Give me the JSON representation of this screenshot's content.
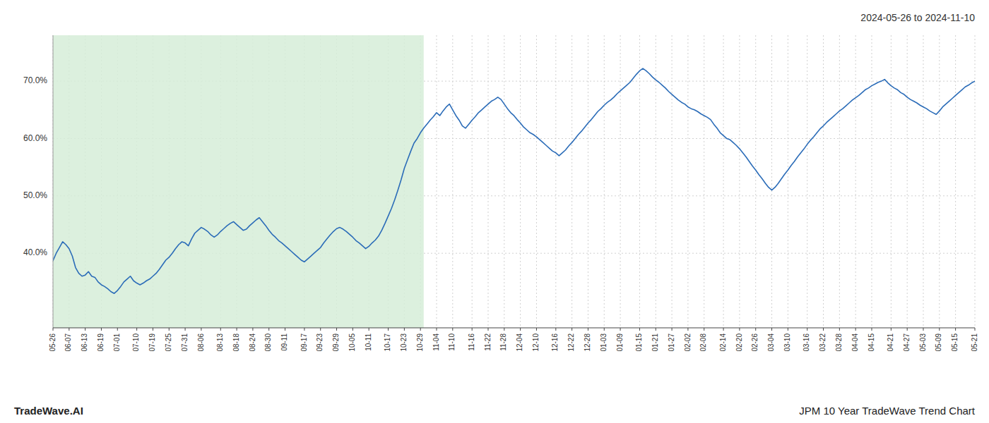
{
  "chart_data": {
    "type": "line",
    "title": "2024-05-26 to 2024-11-10",
    "annotations": [
      "TradeWave.AI",
      "JPM 10 Year TradeWave Trend Chart"
    ],
    "color": "#2B6CB8",
    "grid": true,
    "shade": {
      "x": [
        0,
        115
      ],
      "color": "#d6edd8"
    },
    "ylim": [
      0.27,
      0.78
    ],
    "yticks": [
      {
        "value": 0.4,
        "label": "40.0%"
      },
      {
        "value": 0.5,
        "label": "50.0%"
      },
      {
        "value": 0.6,
        "label": "60.0%"
      },
      {
        "value": 0.7,
        "label": "70.0%"
      }
    ],
    "categories": [
      "05-26",
      null,
      null,
      null,
      null,
      "06-07",
      null,
      null,
      null,
      null,
      "06-13",
      null,
      null,
      null,
      null,
      "06-19",
      null,
      null,
      null,
      null,
      "07-01",
      null,
      null,
      null,
      null,
      null,
      "07-10",
      null,
      null,
      null,
      null,
      "07-19",
      null,
      null,
      null,
      null,
      "07-25",
      null,
      null,
      null,
      null,
      "07-31",
      null,
      null,
      null,
      null,
      "08-06",
      null,
      null,
      null,
      null,
      null,
      "08-13",
      null,
      null,
      null,
      null,
      "08-18",
      null,
      null,
      null,
      null,
      "08-24",
      null,
      null,
      null,
      null,
      "08-30",
      null,
      null,
      null,
      null,
      "09-11",
      null,
      null,
      null,
      null,
      null,
      "09-17",
      null,
      null,
      null,
      null,
      "09-23",
      null,
      null,
      null,
      null,
      "09-29",
      null,
      null,
      null,
      null,
      "10-05",
      null,
      null,
      null,
      null,
      "10-11",
      null,
      null,
      null,
      null,
      null,
      "10-17",
      null,
      null,
      null,
      null,
      "10-23",
      null,
      null,
      null,
      null,
      "10-29",
      null,
      null,
      null,
      null,
      "11-04",
      null,
      null,
      null,
      null,
      "11-10",
      null,
      null,
      null,
      null,
      null,
      "11-16",
      null,
      null,
      null,
      null,
      "11-22",
      null,
      null,
      null,
      null,
      "11-28",
      null,
      null,
      null,
      null,
      "12-04",
      null,
      null,
      null,
      null,
      "12-10",
      null,
      null,
      null,
      null,
      null,
      "12-16",
      null,
      null,
      null,
      null,
      "12-22",
      null,
      null,
      null,
      null,
      "12-28",
      null,
      null,
      null,
      null,
      "01-03",
      null,
      null,
      null,
      null,
      "01-09",
      null,
      null,
      null,
      null,
      null,
      "01-15",
      null,
      null,
      null,
      null,
      "01-21",
      null,
      null,
      null,
      null,
      "01-27",
      null,
      null,
      null,
      null,
      "02-02",
      null,
      null,
      null,
      null,
      "02-08",
      null,
      null,
      null,
      null,
      null,
      "02-14",
      null,
      null,
      null,
      null,
      "02-20",
      null,
      null,
      null,
      null,
      "02-26",
      null,
      null,
      null,
      null,
      "03-04",
      null,
      null,
      null,
      null,
      "03-10",
      null,
      null,
      null,
      null,
      null,
      "03-16",
      null,
      null,
      null,
      null,
      "03-22",
      null,
      null,
      null,
      null,
      "03-28",
      null,
      null,
      null,
      null,
      "04-04",
      null,
      null,
      null,
      null,
      "04-15",
      null,
      null,
      null,
      null,
      null,
      "04-21",
      null,
      null,
      null,
      null,
      "04-27",
      null,
      null,
      null,
      null,
      "05-03",
      null,
      null,
      null,
      null,
      "05-09",
      null,
      null,
      null,
      null,
      "05-15",
      null,
      null,
      null,
      null,
      null,
      "05-21"
    ],
    "values": [
      0.387,
      0.4,
      0.41,
      0.42,
      0.415,
      0.408,
      0.395,
      0.375,
      0.365,
      0.36,
      0.362,
      0.368,
      0.36,
      0.358,
      0.35,
      0.345,
      0.342,
      0.338,
      0.333,
      0.33,
      0.335,
      0.342,
      0.35,
      0.355,
      0.36,
      0.352,
      0.348,
      0.345,
      0.348,
      0.352,
      0.355,
      0.36,
      0.365,
      0.372,
      0.38,
      0.388,
      0.393,
      0.4,
      0.408,
      0.415,
      0.42,
      0.418,
      0.413,
      0.425,
      0.435,
      0.44,
      0.445,
      0.442,
      0.438,
      0.432,
      0.428,
      0.432,
      0.438,
      0.443,
      0.448,
      0.452,
      0.455,
      0.45,
      0.445,
      0.44,
      0.442,
      0.448,
      0.453,
      0.458,
      0.462,
      0.455,
      0.448,
      0.44,
      0.433,
      0.428,
      0.422,
      0.418,
      0.413,
      0.408,
      0.403,
      0.398,
      0.393,
      0.388,
      0.385,
      0.39,
      0.395,
      0.4,
      0.405,
      0.41,
      0.418,
      0.425,
      0.432,
      0.438,
      0.443,
      0.445,
      0.442,
      0.438,
      0.433,
      0.428,
      0.422,
      0.418,
      0.413,
      0.408,
      0.412,
      0.418,
      0.423,
      0.43,
      0.44,
      0.452,
      0.465,
      0.478,
      0.493,
      0.51,
      0.528,
      0.548,
      0.563,
      0.578,
      0.592,
      0.6,
      0.61,
      0.618,
      0.625,
      0.632,
      0.638,
      0.645,
      0.64,
      0.648,
      0.655,
      0.66,
      0.65,
      0.64,
      0.632,
      0.622,
      0.618,
      0.625,
      0.632,
      0.638,
      0.645,
      0.65,
      0.655,
      0.66,
      0.665,
      0.668,
      0.672,
      0.668,
      0.66,
      0.652,
      0.645,
      0.64,
      0.633,
      0.627,
      0.62,
      0.615,
      0.61,
      0.607,
      0.603,
      0.598,
      0.593,
      0.588,
      0.583,
      0.578,
      0.575,
      0.57,
      0.575,
      0.58,
      0.587,
      0.593,
      0.6,
      0.607,
      0.613,
      0.62,
      0.627,
      0.633,
      0.64,
      0.647,
      0.652,
      0.658,
      0.663,
      0.667,
      0.672,
      0.678,
      0.683,
      0.688,
      0.693,
      0.698,
      0.705,
      0.712,
      0.718,
      0.722,
      0.718,
      0.713,
      0.707,
      0.702,
      0.698,
      0.693,
      0.688,
      0.682,
      0.677,
      0.672,
      0.667,
      0.663,
      0.66,
      0.655,
      0.652,
      0.65,
      0.647,
      0.643,
      0.64,
      0.637,
      0.633,
      0.625,
      0.618,
      0.61,
      0.605,
      0.6,
      0.598,
      0.593,
      0.588,
      0.582,
      0.575,
      0.568,
      0.56,
      0.552,
      0.545,
      0.537,
      0.53,
      0.522,
      0.515,
      0.51,
      0.515,
      0.522,
      0.53,
      0.538,
      0.545,
      0.553,
      0.56,
      0.568,
      0.575,
      0.582,
      0.59,
      0.597,
      0.603,
      0.61,
      0.617,
      0.622,
      0.628,
      0.633,
      0.638,
      0.643,
      0.648,
      0.652,
      0.657,
      0.662,
      0.667,
      0.671,
      0.675,
      0.68,
      0.685,
      0.688,
      0.692,
      0.695,
      0.698,
      0.7,
      0.703,
      0.697,
      0.692,
      0.688,
      0.685,
      0.68,
      0.677,
      0.672,
      0.668,
      0.665,
      0.662,
      0.658,
      0.655,
      0.652,
      0.648,
      0.645,
      0.642,
      0.648,
      0.655,
      0.66,
      0.665,
      0.67,
      0.675,
      0.68,
      0.685,
      0.69,
      0.693,
      0.697,
      0.7
    ]
  }
}
